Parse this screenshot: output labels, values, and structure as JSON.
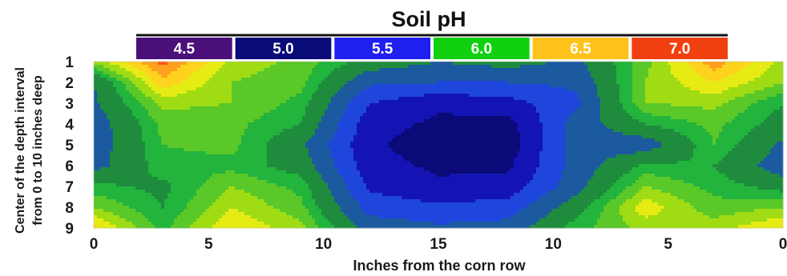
{
  "chart_data": {
    "type": "heatmap",
    "title": "Soil pH",
    "xlabel": "Inches from the corn row",
    "ylabel": [
      "Center of the depth interval",
      "from 0 to 10 inches deep"
    ],
    "x_ticks": [
      "0",
      "5",
      "10",
      "15",
      "10",
      "5",
      "0"
    ],
    "y_ticks": [
      "1",
      "2",
      "3",
      "4",
      "5",
      "6",
      "7",
      "8",
      "9"
    ],
    "legend": [
      {
        "label": "4.5",
        "color": "#4a0f78"
      },
      {
        "label": "5.0",
        "color": "#0a0a78"
      },
      {
        "label": "5.5",
        "color": "#1f1ff0"
      },
      {
        "label": "6.0",
        "color": "#10d010"
      },
      {
        "label": "6.5",
        "color": "#ffc21a"
      },
      {
        "label": "7.0",
        "color": "#f04010"
      }
    ],
    "contour_levels": [
      {
        "level": 4.75,
        "color": "#3a0a5a"
      },
      {
        "level": 5.0,
        "color": "#0a0a78"
      },
      {
        "level": 5.25,
        "color": "#1414b4"
      },
      {
        "level": 5.5,
        "color": "#1e46dc"
      },
      {
        "level": 5.75,
        "color": "#1c5aa0"
      },
      {
        "level": 6.0,
        "color": "#1e8c3c"
      },
      {
        "level": 6.15,
        "color": "#22b43c"
      },
      {
        "level": 6.3,
        "color": "#5ac828"
      },
      {
        "level": 6.45,
        "color": "#a0dc14"
      },
      {
        "level": 6.6,
        "color": "#e6eb14"
      },
      {
        "level": 6.75,
        "color": "#ffd21e"
      },
      {
        "level": 6.9,
        "color": "#ffa01e"
      },
      {
        "level": 7.0,
        "color": "#ff5a14"
      }
    ],
    "x_positions": [
      0,
      3,
      6,
      9,
      12,
      15,
      18,
      21,
      24,
      27,
      30
    ],
    "y_positions": [
      1,
      2,
      3,
      4,
      5,
      6,
      7,
      8,
      9
    ],
    "z": [
      [
        6.35,
        6.95,
        6.4,
        6.25,
        5.9,
        5.75,
        5.85,
        5.7,
        6.25,
        6.85,
        6.4
      ],
      [
        5.75,
        6.7,
        6.3,
        6.2,
        5.55,
        5.5,
        5.5,
        5.55,
        6.3,
        6.6,
        6.3
      ],
      [
        5.7,
        6.35,
        6.3,
        6.1,
        5.25,
        5.05,
        5.15,
        5.45,
        6.3,
        6.35,
        6.0
      ],
      [
        5.6,
        6.2,
        6.2,
        6.0,
        5.1,
        4.95,
        4.9,
        5.6,
        6.0,
        6.2,
        5.9
      ],
      [
        5.6,
        6.15,
        6.2,
        5.8,
        5.05,
        4.85,
        4.85,
        5.65,
        5.6,
        6.15,
        5.7
      ],
      [
        5.65,
        6.1,
        6.1,
        5.9,
        5.1,
        4.95,
        4.95,
        5.6,
        6.05,
        6.0,
        5.6
      ],
      [
        6.05,
        5.95,
        6.3,
        6.1,
        5.2,
        5.05,
        5.1,
        5.65,
        6.3,
        6.1,
        5.9
      ],
      [
        6.3,
        6.0,
        6.45,
        6.2,
        5.4,
        5.3,
        5.35,
        5.9,
        6.55,
        6.2,
        6.3
      ],
      [
        6.65,
        6.1,
        6.6,
        6.35,
        5.65,
        5.55,
        5.6,
        6.1,
        6.35,
        6.4,
        6.6
      ]
    ]
  }
}
